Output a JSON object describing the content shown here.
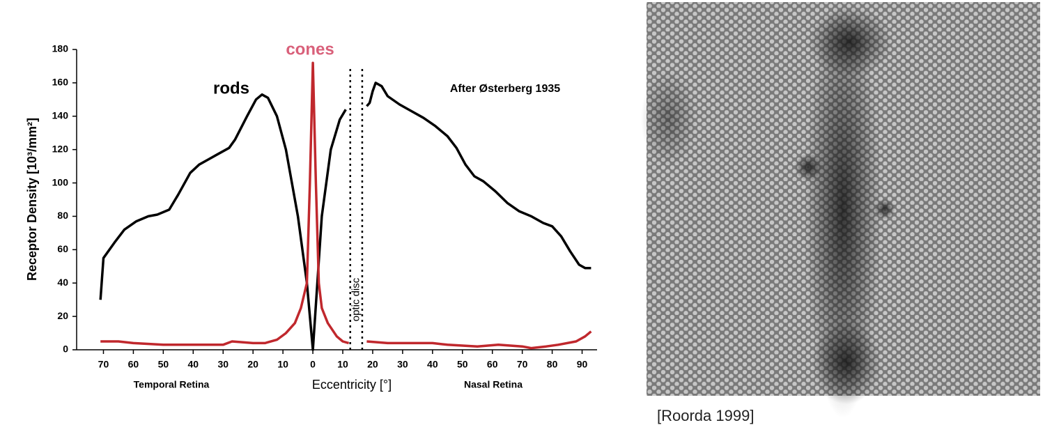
{
  "chart_data": {
    "type": "line",
    "ylabel": "Receptor Density [10³/mm²]",
    "xlabel": "Eccentricity [°]",
    "xlim": [
      -75,
      95
    ],
    "ylim": [
      0,
      180
    ],
    "yticks": [
      0,
      20,
      40,
      60,
      80,
      100,
      120,
      140,
      160,
      180
    ],
    "xticks": [
      {
        "value": -70,
        "label": "70"
      },
      {
        "value": -60,
        "label": "60"
      },
      {
        "value": -50,
        "label": "50"
      },
      {
        "value": -40,
        "label": "40"
      },
      {
        "value": -30,
        "label": "30"
      },
      {
        "value": -20,
        "label": "20"
      },
      {
        "value": -10,
        "label": "10"
      },
      0,
      10,
      20,
      30,
      40,
      50,
      60,
      70,
      80,
      90
    ],
    "series": [
      {
        "name": "rods",
        "color": "#000000",
        "x": [
          -71,
          -70,
          -66,
          -63,
          -59,
          -55,
          -52,
          -48,
          -45,
          -41,
          -38,
          -35,
          -32,
          -28,
          -26,
          -22,
          -19,
          -17,
          -15,
          -12,
          -9,
          -5,
          -2,
          0,
          1.5,
          3,
          6,
          9,
          11,
          14,
          18,
          19,
          20,
          21,
          23,
          25,
          29,
          33,
          37,
          41,
          45,
          48,
          51,
          54,
          57,
          61,
          65,
          69,
          73,
          77,
          80,
          83,
          86,
          89,
          91,
          93
        ],
        "values": [
          30,
          55,
          65,
          72,
          77,
          80,
          81,
          84,
          93,
          106,
          111,
          114,
          117,
          121,
          126,
          140,
          150,
          153,
          151,
          140,
          120,
          80,
          40,
          0,
          40,
          80,
          120,
          138,
          144,
          null,
          146,
          148,
          155,
          160,
          158,
          152,
          147,
          143,
          139,
          134,
          128,
          121,
          111,
          104,
          101,
          95,
          88,
          83,
          80,
          76,
          74,
          68,
          59,
          51,
          49,
          49
        ]
      },
      {
        "name": "cones",
        "color": "#c0282d",
        "x": [
          -71,
          -65,
          -60,
          -50,
          -40,
          -30,
          -27,
          -20,
          -16,
          -12,
          -9,
          -6,
          -4,
          -2,
          -1,
          0,
          1,
          2,
          3,
          5,
          8,
          10,
          12,
          14,
          18,
          25,
          40,
          45,
          55,
          62,
          70,
          73,
          78,
          82,
          88,
          91,
          93
        ],
        "values": [
          5,
          5,
          4,
          3,
          3,
          3,
          5,
          4,
          4,
          6,
          10,
          16,
          25,
          40,
          100,
          172,
          100,
          40,
          25,
          16,
          8,
          5,
          4,
          null,
          5,
          4,
          4,
          3,
          2,
          3,
          2,
          1,
          2,
          3,
          5,
          8,
          11
        ]
      }
    ],
    "annotations": [
      {
        "text": "After Østerberg 1935"
      },
      {
        "text": "Temporal Retina"
      },
      {
        "text": "Nasal Retina"
      },
      {
        "text": "optic disc",
        "x": [
          12.5,
          16.5
        ]
      }
    ]
  },
  "image": {
    "caption": "[Roorda 1999]"
  }
}
